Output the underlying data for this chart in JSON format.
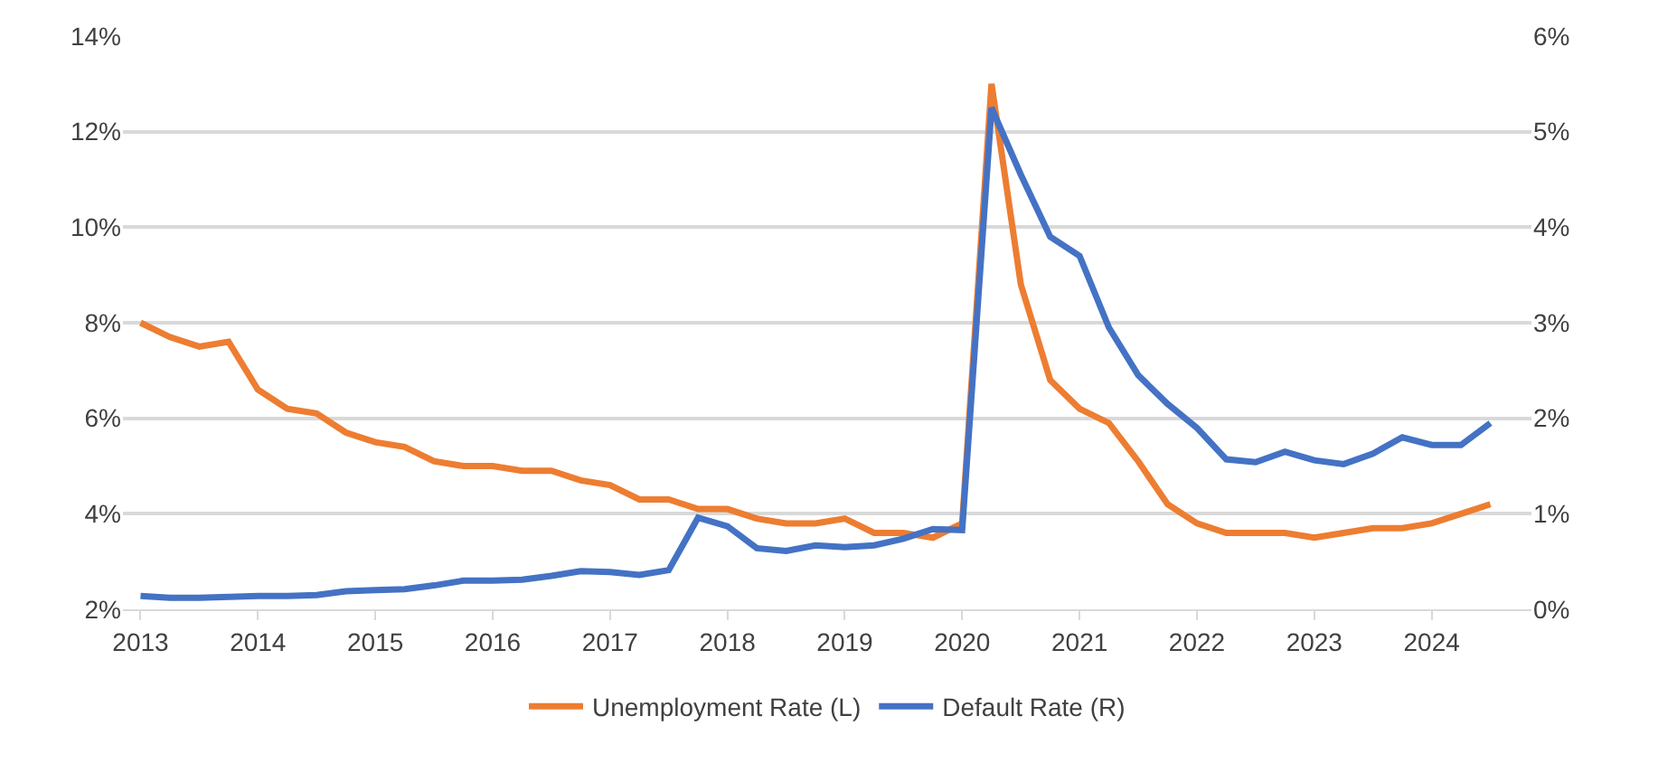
{
  "chart_data": {
    "type": "line",
    "x": [
      2013,
      2013.25,
      2013.5,
      2013.75,
      2014,
      2014.25,
      2014.5,
      2014.75,
      2015,
      2015.25,
      2015.5,
      2015.75,
      2016,
      2016.25,
      2016.5,
      2016.75,
      2017,
      2017.25,
      2017.5,
      2017.75,
      2018,
      2018.25,
      2018.5,
      2018.75,
      2019,
      2019.25,
      2019.5,
      2019.75,
      2020,
      2020.25,
      2020.5,
      2020.75,
      2021,
      2021.25,
      2021.5,
      2021.75,
      2022,
      2022.25,
      2022.5,
      2022.75,
      2023,
      2023.25,
      2023.5,
      2023.75,
      2024,
      2024.25,
      2024.5
    ],
    "series": [
      {
        "name": "Unemployment Rate (L)",
        "color": "#ed7d31",
        "values": [
          8.0,
          7.7,
          7.5,
          7.6,
          6.6,
          6.2,
          6.1,
          5.7,
          5.5,
          5.4,
          5.1,
          5.0,
          5.0,
          4.9,
          4.9,
          4.7,
          4.6,
          4.3,
          4.3,
          4.1,
          4.1,
          3.9,
          3.8,
          3.8,
          3.9,
          3.6,
          3.6,
          3.5,
          3.8,
          13.0,
          8.8,
          6.8,
          6.2,
          5.9,
          5.1,
          4.2,
          3.8,
          3.6,
          3.6,
          3.6,
          3.5,
          3.6,
          3.7,
          3.7,
          3.8,
          4.0,
          4.2
        ]
      },
      {
        "name": "Default Rate (R)",
        "color": "#4472c4",
        "axis": "y2",
        "values": [
          0.14,
          0.12,
          0.12,
          0.13,
          0.14,
          0.14,
          0.15,
          0.19,
          0.2,
          0.21,
          0.25,
          0.3,
          0.3,
          0.31,
          0.35,
          0.4,
          0.39,
          0.36,
          0.41,
          0.96,
          0.87,
          0.64,
          0.61,
          0.67,
          0.65,
          0.67,
          0.74,
          0.84,
          0.83,
          5.25,
          4.55,
          3.9,
          3.7,
          2.95,
          2.45,
          2.15,
          1.9,
          1.57,
          1.54,
          1.65,
          1.56,
          1.52,
          1.63,
          1.8,
          1.72,
          1.72,
          1.95
        ]
      }
    ],
    "xlim": [
      2012.85,
      2024.85
    ],
    "xticks": [
      2013,
      2014,
      2015,
      2016,
      2017,
      2018,
      2019,
      2020,
      2021,
      2022,
      2023,
      2024
    ],
    "ylim": [
      2,
      14
    ],
    "yticks": [
      {
        "value": 2,
        "label": "2%"
      },
      {
        "value": 4,
        "label": "4%"
      },
      {
        "value": 6,
        "label": "6%"
      },
      {
        "value": 8,
        "label": "8%"
      },
      {
        "value": 10,
        "label": "10%"
      },
      {
        "value": 12,
        "label": "12%"
      },
      {
        "value": 14,
        "label": "14%"
      }
    ],
    "y2lim": [
      0,
      6
    ],
    "y2ticks": [
      {
        "value": 0,
        "label": "0%"
      },
      {
        "value": 1,
        "label": "1%"
      },
      {
        "value": 2,
        "label": "2%"
      },
      {
        "value": 3,
        "label": "3%"
      },
      {
        "value": 4,
        "label": "4%"
      },
      {
        "value": 5,
        "label": "5%"
      },
      {
        "value": 6,
        "label": "6%"
      }
    ],
    "grid": "y",
    "legend": "bottom",
    "marker": "none",
    "line_style": "solid"
  }
}
